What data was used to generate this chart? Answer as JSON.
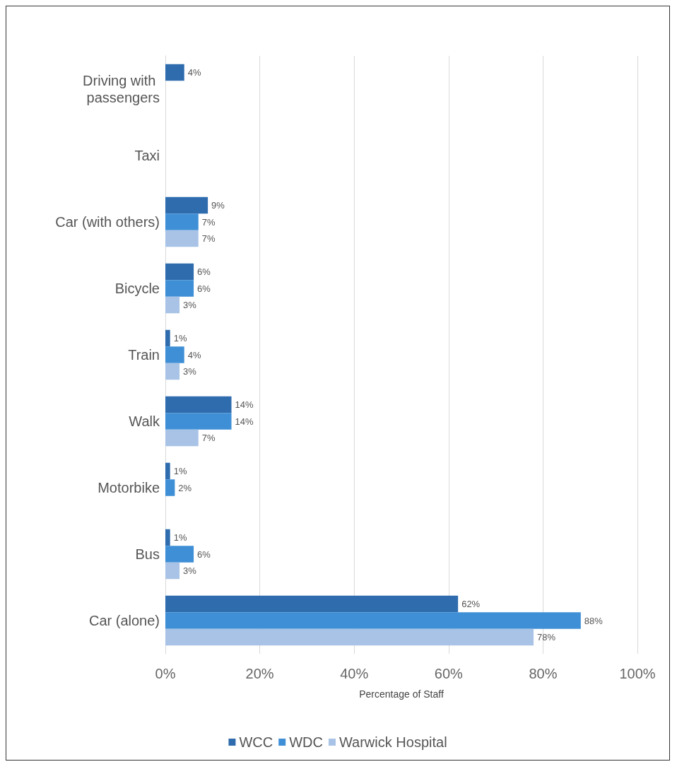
{
  "chart_data": {
    "type": "bar",
    "orientation": "horizontal",
    "xlabel": "Percentage of Staff",
    "categories": [
      "Driving with passengers",
      "Taxi",
      "Car (with others)",
      "Bicycle",
      "Train",
      "Walk",
      "Motorbike",
      "Bus",
      "Car (alone)"
    ],
    "series": [
      {
        "name": "WCC",
        "color": "#2e6cae",
        "values": [
          4,
          null,
          9,
          6,
          1,
          14,
          1,
          1,
          62
        ],
        "value_labels": [
          "4%",
          null,
          "9%",
          "6%",
          "1%",
          "14%",
          "1%",
          "1%",
          "62%"
        ]
      },
      {
        "name": "WDC",
        "color": "#3f8fd6",
        "values": [
          null,
          null,
          7,
          6,
          4,
          14,
          2,
          6,
          88
        ],
        "value_labels": [
          null,
          null,
          "7%",
          "6%",
          "4%",
          "14%",
          "2%",
          "6%",
          "88%"
        ]
      },
      {
        "name": "Warwick Hospital",
        "color": "#a9c3e6",
        "values": [
          null,
          null,
          7,
          3,
          3,
          7,
          null,
          3,
          78
        ],
        "value_labels": [
          null,
          null,
          "7%",
          "3%",
          "3%",
          "7%",
          null,
          "3%",
          "78%"
        ]
      }
    ],
    "xlim": [
      0,
      100
    ],
    "xticks": [
      {
        "value": 0,
        "label": "0%"
      },
      {
        "value": 20,
        "label": "20%"
      },
      {
        "value": 40,
        "label": "40%"
      },
      {
        "value": 60,
        "label": "60%"
      },
      {
        "value": 80,
        "label": "80%"
      },
      {
        "value": 100,
        "label": "100%"
      }
    ],
    "grid": "x",
    "legend": "bottom"
  }
}
